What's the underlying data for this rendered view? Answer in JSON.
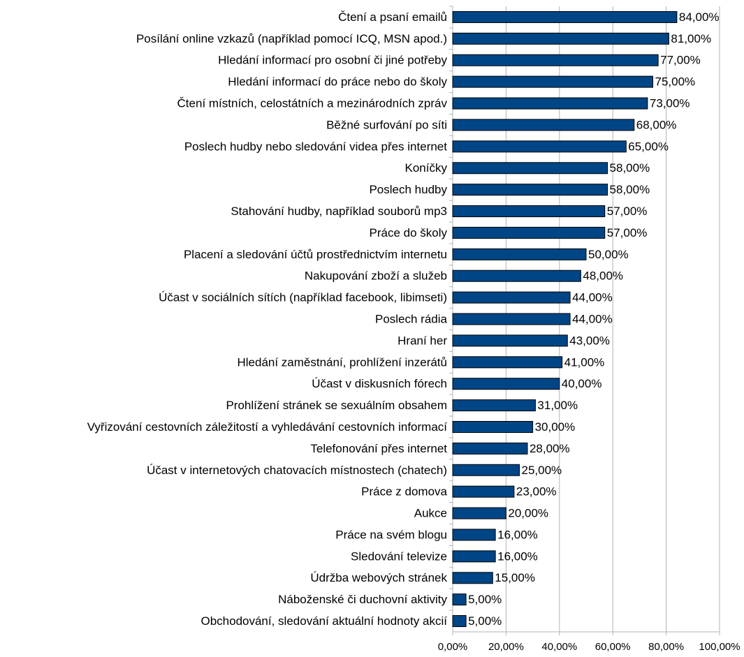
{
  "chart_data": {
    "type": "barh",
    "categories": [
      "Čtení a psaní emailů",
      "Posílání online vzkazů (například pomocí ICQ, MSN apod.)",
      "Hledání informací pro osobní či jiné potřeby",
      "Hledání informací do práce nebo do školy",
      "Čtení místních, celostátních a mezinárodních zpráv",
      "Běžné surfování po síti",
      "Poslech hudby nebo sledování videa přes internet",
      "Koníčky",
      "Poslech hudby",
      "Stahování hudby, například souborů mp3",
      "Práce do školy",
      "Placení a sledování účtů prostřednictvím internetu",
      "Nakupování zboží a služeb",
      "Účast v sociálních sítích (například facebook, libimseti)",
      "Poslech rádia",
      "Hraní her",
      "Hledání zaměstnání, prohlížení inzerátů",
      "Účast v diskusních fórech",
      "Prohlížení stránek se sexuálním obsahem",
      "Vyřizování cestovních záležitostí a vyhledávání cestovních informací",
      "Telefonování přes internet",
      "Účast v internetových chatovacích místnostech (chatech)",
      "Práce z domova",
      "Aukce",
      "Práce na svém blogu",
      "Sledování televize",
      "Údržba webových stránek",
      "Náboženské či duchovní aktivity",
      "Obchodování, sledování aktuální hodnoty akcií"
    ],
    "values": [
      84,
      81,
      77,
      75,
      73,
      68,
      65,
      58,
      58,
      57,
      57,
      50,
      48,
      44,
      44,
      43,
      41,
      40,
      31,
      30,
      28,
      25,
      23,
      20,
      16,
      16,
      15,
      5,
      5
    ],
    "value_labels": [
      "84,00%",
      "81,00%",
      "77,00%",
      "75,00%",
      "73,00%",
      "68,00%",
      "65,00%",
      "58,00%",
      "58,00%",
      "57,00%",
      "57,00%",
      "50,00%",
      "48,00%",
      "44,00%",
      "44,00%",
      "43,00%",
      "41,00%",
      "40,00%",
      "31,00%",
      "30,00%",
      "28,00%",
      "25,00%",
      "23,00%",
      "20,00%",
      "16,00%",
      "16,00%",
      "15,00%",
      "5,00%",
      "5,00%"
    ],
    "color": "#004586",
    "xlim": [
      0,
      100
    ],
    "xticks": [
      {
        "value": 0,
        "label": "0,00%"
      },
      {
        "value": 20,
        "label": "20,00%"
      },
      {
        "value": 40,
        "label": "40,00%"
      },
      {
        "value": 60,
        "label": "60,00%"
      },
      {
        "value": 80,
        "label": "80,00%"
      },
      {
        "value": 100,
        "label": "100,00%"
      }
    ],
    "grid": true
  }
}
